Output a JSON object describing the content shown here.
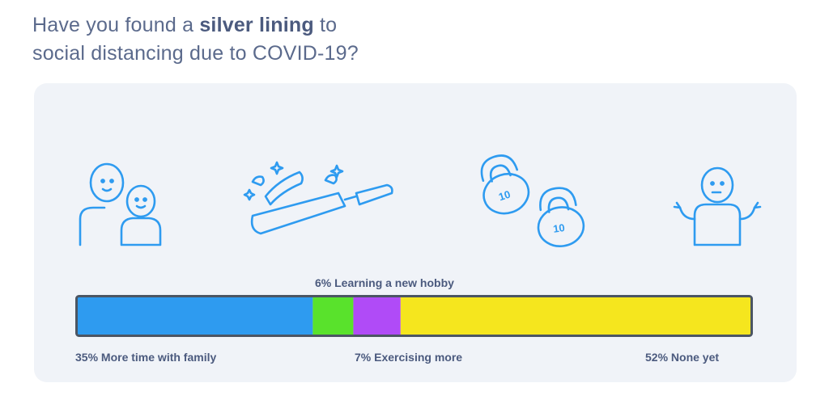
{
  "title": {
    "prefix": "Have you found a ",
    "bold": "silver lining",
    "suffix": " to",
    "line2": "social distancing due to COVID-19?"
  },
  "icons": {
    "family": "family-icon",
    "cooking": "frying-pan-icon",
    "exercise": "kettlebell-icon",
    "none": "shrug-person-icon",
    "kettlebell_weight": "10"
  },
  "colors": {
    "icon_stroke": "#2e9bf0",
    "bar_outline": "#4b5563",
    "panel_bg": "#f0f3f8"
  },
  "chart_data": {
    "type": "bar",
    "orientation": "horizontal-stacked",
    "series": [
      {
        "name": "More time with family",
        "value": 35,
        "label": "35% More time with family",
        "color": "#2e9bf0"
      },
      {
        "name": "Learning a new hobby",
        "value": 6,
        "label": "6% Learning a new hobby",
        "color": "#59e22c"
      },
      {
        "name": "Exercising more",
        "value": 7,
        "label": "7% Exercising more",
        "color": "#b04bf7"
      },
      {
        "name": "None yet",
        "value": 52,
        "label": "52% None yet",
        "color": "#f5e61e"
      }
    ],
    "total": 100
  }
}
